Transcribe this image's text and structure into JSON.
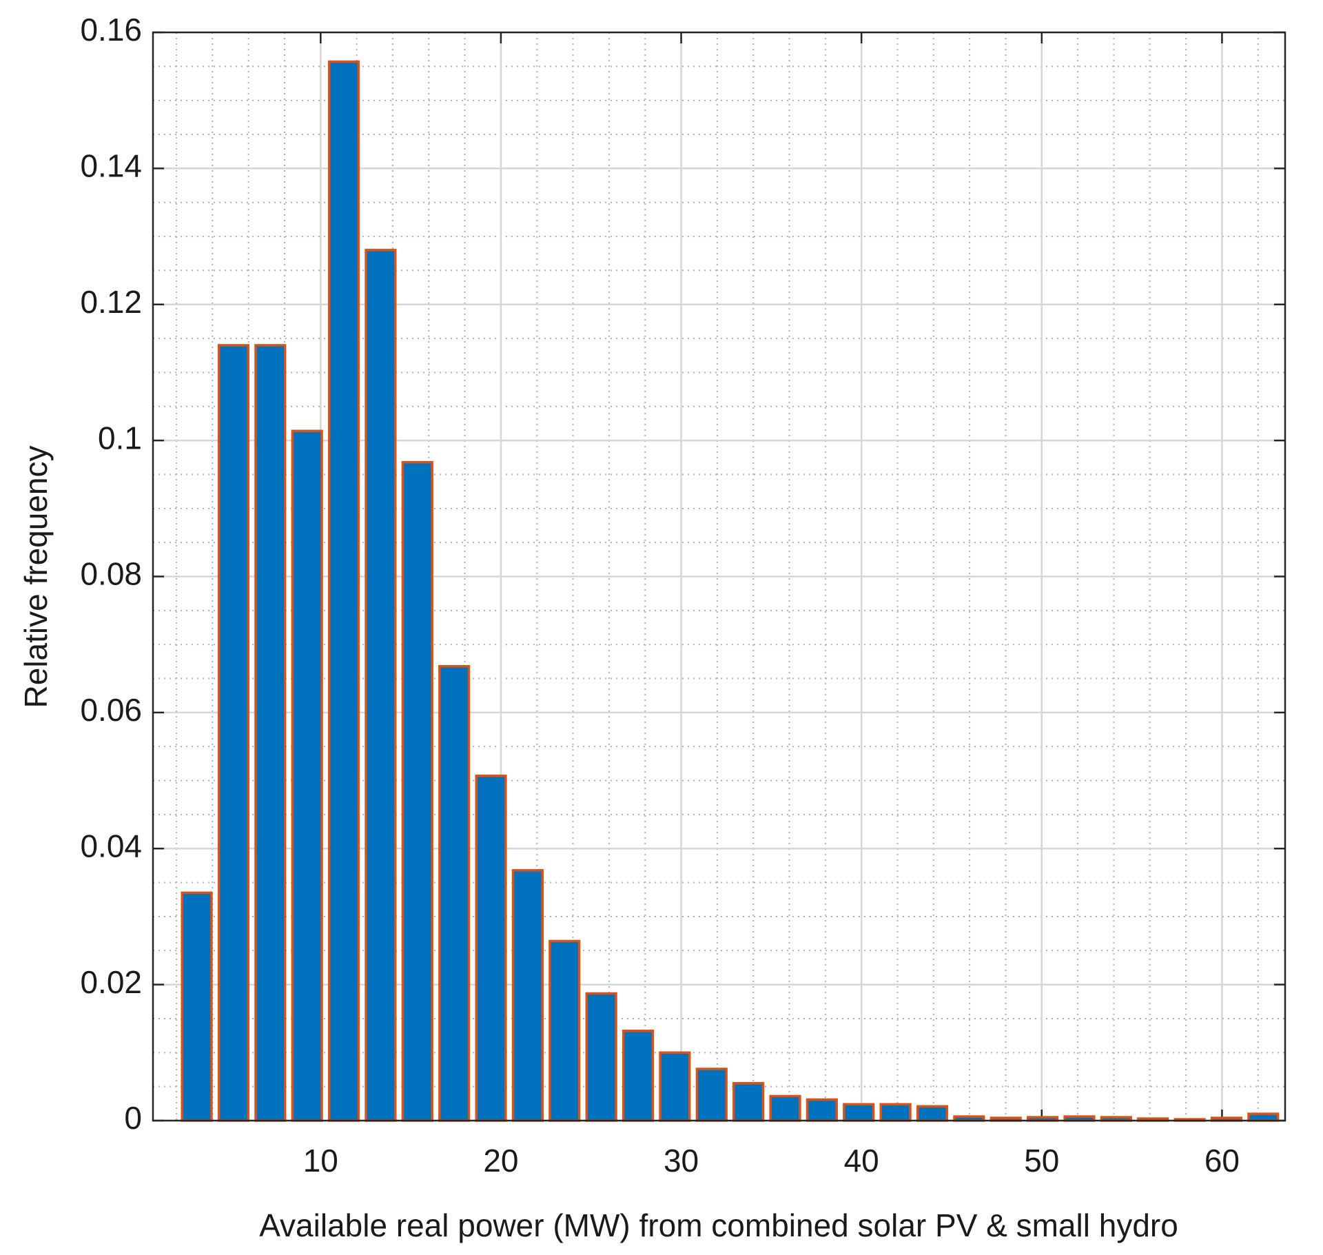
{
  "chart_data": {
    "type": "bar",
    "x_label": "Available real power (MW) from combined solar PV & small hydro",
    "y_label": "Relative frequency",
    "x": [
      3.13,
      5.17,
      7.21,
      9.25,
      11.29,
      13.33,
      15.37,
      17.41,
      19.45,
      21.49,
      23.53,
      25.57,
      27.61,
      29.65,
      31.69,
      33.73,
      35.77,
      37.81,
      39.85,
      41.89,
      43.93,
      45.97,
      48.01,
      50.05,
      52.09,
      54.13,
      56.17,
      58.21,
      60.25,
      62.29
    ],
    "values": [
      0.0335,
      0.114,
      0.114,
      0.1014,
      0.1557,
      0.128,
      0.0968,
      0.0668,
      0.0507,
      0.0368,
      0.0264,
      0.0187,
      0.0132,
      0.01,
      0.0076,
      0.0055,
      0.0036,
      0.0031,
      0.0024,
      0.0024,
      0.0021,
      0.0006,
      0.0004,
      0.0005,
      0.0006,
      0.0005,
      0.0003,
      0.0002,
      0.0004,
      0.001
    ],
    "color": "#0072bd",
    "edge_color": "#d95319",
    "xlim": [
      0.7,
      63.5
    ],
    "xticks": [
      10,
      20,
      30,
      40,
      50,
      60
    ],
    "ylim": [
      0,
      0.16
    ],
    "yticks": [
      0,
      0.02,
      0.04,
      0.06,
      0.08,
      0.1,
      0.12,
      0.14,
      0.16
    ],
    "grid": true,
    "minor_grid": true
  }
}
